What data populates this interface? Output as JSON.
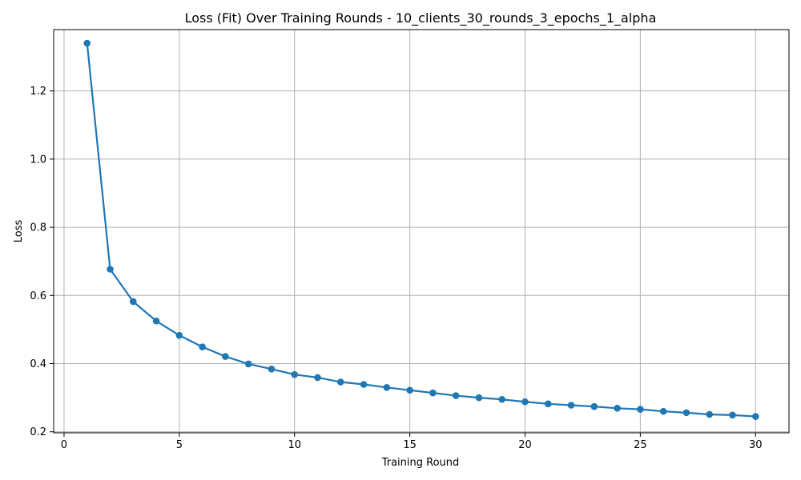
{
  "chart_data": {
    "type": "line",
    "title": "Loss (Fit) Over Training Rounds  - 10_clients_30_rounds_3_epochs_1_alpha",
    "xlabel": "Training Round",
    "ylabel": "Loss",
    "xlim": [
      -0.45,
      31.45
    ],
    "ylim": [
      0.197,
      1.38
    ],
    "x_ticks": [
      0,
      5,
      10,
      15,
      20,
      25,
      30
    ],
    "y_ticks": [
      0.2,
      0.4,
      0.6,
      0.8,
      1.0,
      1.2
    ],
    "grid": true,
    "series": [
      {
        "color": "#1f77b4",
        "marker": "circle",
        "x": [
          1,
          2,
          3,
          4,
          5,
          6,
          7,
          8,
          9,
          10,
          11,
          12,
          13,
          14,
          15,
          16,
          17,
          18,
          19,
          20,
          21,
          22,
          23,
          24,
          25,
          26,
          27,
          28,
          29,
          30
        ],
        "values": [
          1.34,
          0.677,
          0.582,
          0.525,
          0.483,
          0.449,
          0.421,
          0.399,
          0.384,
          0.368,
          0.359,
          0.346,
          0.339,
          0.33,
          0.322,
          0.314,
          0.306,
          0.3,
          0.295,
          0.288,
          0.282,
          0.278,
          0.274,
          0.269,
          0.266,
          0.26,
          0.256,
          0.251,
          0.249,
          0.245
        ]
      }
    ]
  }
}
